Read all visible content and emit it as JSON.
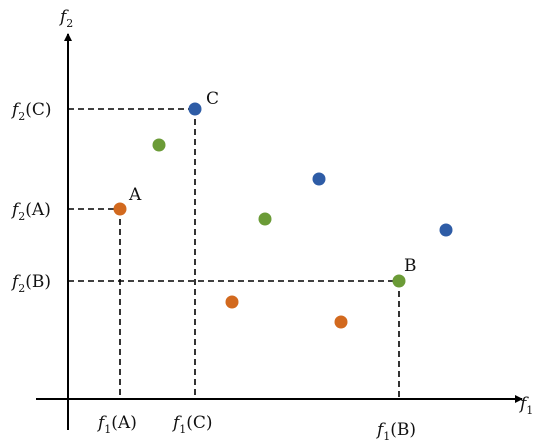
{
  "axes": {
    "x_label": {
      "main": "f",
      "sub": "1"
    },
    "y_label": {
      "main": "f",
      "sub": "2"
    }
  },
  "points": {
    "A": {
      "label": "A",
      "color": "#D2691E",
      "f1": 1.0,
      "f2": 4.0
    },
    "B": {
      "label": "B",
      "color": "#6B9B37",
      "f1": 6.5,
      "f2": 2.5
    },
    "C": {
      "label": "C",
      "color": "#2E5CA6",
      "f1": 2.4,
      "f2": 6.0
    }
  },
  "other_points": [
    {
      "color": "#6B9B37",
      "f1": 1.8,
      "f2": 5.2
    },
    {
      "color": "#6B9B37",
      "f1": 3.9,
      "f2": 3.6
    },
    {
      "color": "#2E5CA6",
      "f1": 5.1,
      "f2": 4.4
    },
    {
      "color": "#2E5CA6",
      "f1": 7.4,
      "f2": 3.4
    },
    {
      "color": "#D2691E",
      "f1": 3.2,
      "f2": 1.9
    },
    {
      "color": "#D2691E",
      "f1": 5.5,
      "f2": 1.5
    }
  ],
  "tick_labels": {
    "x": [
      {
        "main": "f",
        "sub": "1",
        "arg": "(A)"
      },
      {
        "main": "f",
        "sub": "1",
        "arg": "(C)"
      },
      {
        "main": "f",
        "sub": "1",
        "arg": "(B)"
      }
    ],
    "y": [
      {
        "main": "f",
        "sub": "2",
        "arg": "(C)"
      },
      {
        "main": "f",
        "sub": "2",
        "arg": "(A)"
      },
      {
        "main": "f",
        "sub": "2",
        "arg": "(B)"
      }
    ]
  },
  "colors": {
    "axis": "#000000",
    "dashed": "#000000"
  }
}
